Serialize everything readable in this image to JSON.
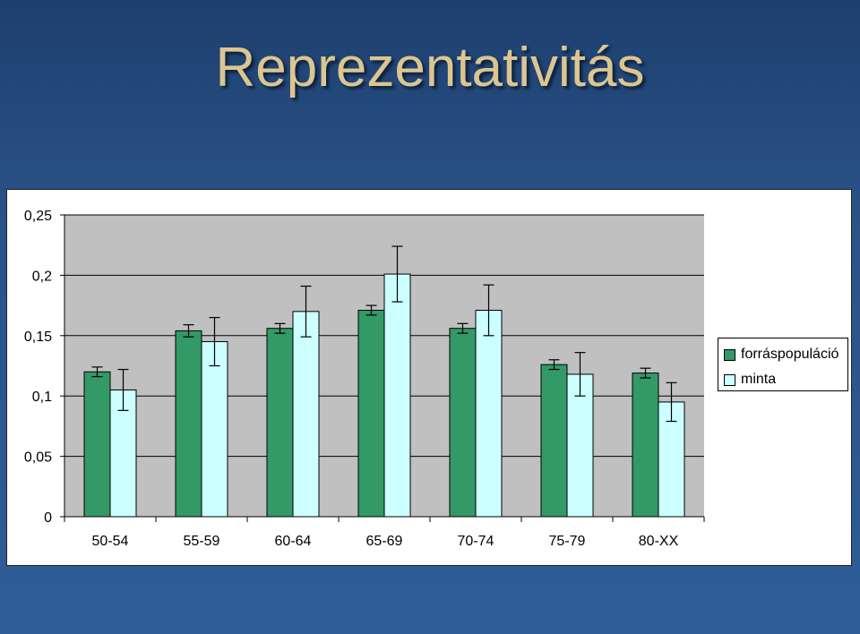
{
  "slide": {
    "title": "Reprezentativitás"
  },
  "colors": {
    "plot_background": "#c0c0c0",
    "series_1": "#339966",
    "series_2": "#ccffff"
  },
  "chart_data": {
    "type": "bar",
    "categories": [
      "50-54",
      "55-59",
      "60-64",
      "65-69",
      "70-74",
      "75-79",
      "80-XX"
    ],
    "series": [
      {
        "name": "forráspopuláció",
        "values": [
          0.12,
          0.154,
          0.156,
          0.171,
          0.156,
          0.126,
          0.119
        ],
        "error": [
          0.004,
          0.005,
          0.004,
          0.004,
          0.004,
          0.004,
          0.004
        ]
      },
      {
        "name": "minta",
        "values": [
          0.105,
          0.145,
          0.17,
          0.201,
          0.171,
          0.118,
          0.095
        ],
        "error": [
          0.017,
          0.02,
          0.021,
          0.023,
          0.021,
          0.018,
          0.016
        ]
      }
    ],
    "ylim": [
      0,
      0.25
    ],
    "yticks": [
      0,
      0.05,
      0.1,
      0.15,
      0.2,
      0.25
    ],
    "ytick_labels": [
      "0",
      "0,05",
      "0,1",
      "0,15",
      "0,2",
      "0,25"
    ],
    "grid": true,
    "legend": "right"
  }
}
